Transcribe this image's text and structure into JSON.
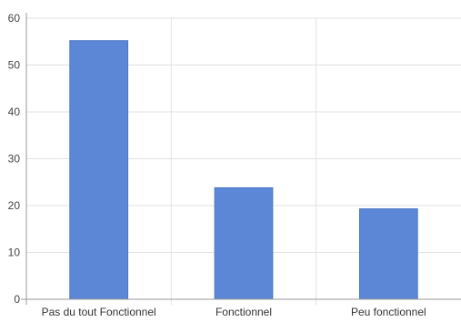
{
  "colors": {
    "bar": "#5b87d6",
    "bar_stroke": "#4a76c6",
    "grid": "#e2e2e2",
    "axis": "#9a9a9a",
    "background": "#ffffff"
  },
  "chart_data": {
    "type": "bar",
    "title": "",
    "xlabel": "",
    "ylabel": "",
    "categories": [
      "Pas du tout Fonctionnel",
      "Fonctionnel",
      "Peu fonctionnel"
    ],
    "values": [
      55.2,
      23.8,
      19.3
    ],
    "ylim": [
      0,
      60
    ],
    "yticks": [
      0,
      10,
      20,
      30,
      40,
      50,
      60
    ],
    "grid": true,
    "legend": "none"
  }
}
